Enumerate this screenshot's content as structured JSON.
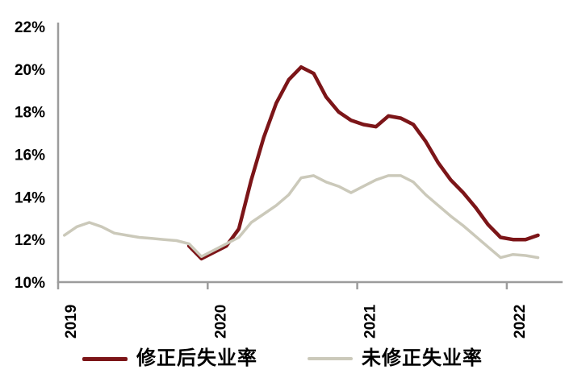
{
  "chart_data": {
    "type": "line",
    "title": "",
    "grid": false,
    "legend_position": "bottom",
    "x_axis": {
      "unit": "month",
      "start": "2019-01",
      "end": "2022-03",
      "tick_labels": [
        "2019",
        "2020",
        "2021",
        "2022"
      ],
      "tick_month_indices": [
        0,
        12,
        24,
        36
      ],
      "label_rotation_deg": -90
    },
    "y_axis": {
      "min": 10,
      "max": 22,
      "step": 2,
      "tick_values": [
        10,
        12,
        14,
        16,
        18,
        20,
        22
      ],
      "tick_labels": [
        "10%",
        "12%",
        "14%",
        "16%",
        "18%",
        "20%",
        "22%"
      ]
    },
    "series": [
      {
        "name": "修正后失业率",
        "color": "#7C1518",
        "start_month": "2019-11",
        "start_index": 10,
        "values": [
          11.7,
          11.1,
          11.4,
          11.7,
          12.5,
          14.8,
          16.8,
          18.4,
          19.5,
          20.1,
          19.8,
          18.7,
          18.0,
          17.6,
          17.4,
          17.3,
          17.8,
          17.7,
          17.4,
          16.6,
          15.6,
          14.8,
          14.2,
          13.5,
          12.7,
          12.1,
          12.0,
          12.0,
          12.2
        ]
      },
      {
        "name": "未修正失业率",
        "color": "#CBC9BA",
        "start_month": "2019-01",
        "start_index": 0,
        "values": [
          12.2,
          12.6,
          12.8,
          12.6,
          12.3,
          12.2,
          12.1,
          12.05,
          12.0,
          11.95,
          11.8,
          11.2,
          11.5,
          11.8,
          12.1,
          12.8,
          13.2,
          13.6,
          14.1,
          14.9,
          15.0,
          14.7,
          14.5,
          14.2,
          14.5,
          14.8,
          15.0,
          15.0,
          14.7,
          14.1,
          13.6,
          13.1,
          12.65,
          12.15,
          11.65,
          11.15,
          11.3,
          11.25,
          11.15
        ]
      }
    ]
  },
  "legend": {
    "item1": "修正后失业率",
    "item2": "未修正失业率"
  },
  "colors": {
    "revised_line": "#7C1518",
    "unrevised_line": "#CBC9BA",
    "axis": "#9C9C9C",
    "text": "#000000",
    "background": "#FFFFFF"
  }
}
